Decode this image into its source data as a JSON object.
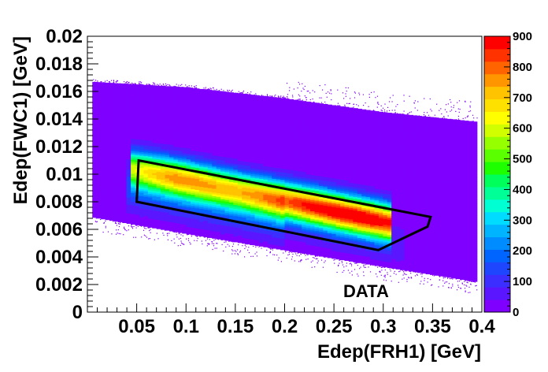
{
  "chart_data": {
    "type": "heatmap",
    "title": "",
    "xlabel": "Edep(FRH1) [GeV]",
    "ylabel": "Edep(FWC1) [GeV]",
    "xlim": [
      0,
      0.4
    ],
    "ylim": [
      0,
      0.02
    ],
    "x_ticks": [
      "0.05",
      "0.1",
      "0.15",
      "0.2",
      "0.25",
      "0.3",
      "0.35",
      "0.4"
    ],
    "y_ticks": [
      "0",
      "0.002",
      "0.004",
      "0.006",
      "0.008",
      "0.01",
      "0.012",
      "0.014",
      "0.016",
      "0.018",
      "0.02"
    ],
    "z_range": [
      0,
      900
    ],
    "z_ticks": [
      "0",
      "100",
      "200",
      "300",
      "400",
      "500",
      "600",
      "700",
      "800",
      "900"
    ],
    "palette": [
      "#7f00ff",
      "#5a17ff",
      "#3c2eff",
      "#1e46ff",
      "#0064ff",
      "#008cff",
      "#00b4ff",
      "#00dcff",
      "#00ffd2",
      "#00ff96",
      "#00ff5a",
      "#1eff00",
      "#5aff00",
      "#96ff00",
      "#d2ff00",
      "#ffff00",
      "#ffe100",
      "#ffc300",
      "#ff9600",
      "#ff6400",
      "#ff3200",
      "#ff0000"
    ],
    "band": {
      "upper_edge": [
        [
          0.005,
          0.0167
        ],
        [
          0.1,
          0.0163
        ],
        [
          0.2,
          0.0155
        ],
        [
          0.3,
          0.0145
        ],
        [
          0.395,
          0.0138
        ]
      ],
      "lower_edge": [
        [
          0.005,
          0.0069
        ],
        [
          0.1,
          0.0057
        ],
        [
          0.2,
          0.0045
        ],
        [
          0.3,
          0.0033
        ],
        [
          0.395,
          0.0022
        ]
      ],
      "peak_z": 900,
      "peak": [
        0.265,
        0.0064
      ]
    },
    "cut_polygon": [
      [
        0.052,
        0.011
      ],
      [
        0.05,
        0.008
      ],
      [
        0.295,
        0.0045
      ],
      [
        0.345,
        0.0062
      ],
      [
        0.348,
        0.0069
      ]
    ],
    "annotation": "DATA"
  }
}
